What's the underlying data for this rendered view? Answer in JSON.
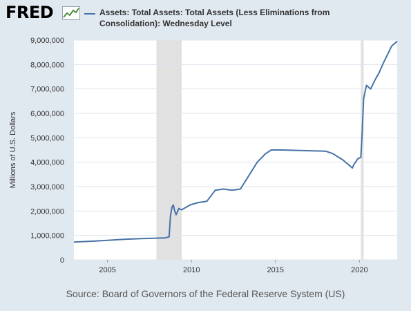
{
  "brand": {
    "logo_text": "FRED"
  },
  "legend": {
    "label": "Assets: Total Assets: Total Assets (Less Eliminations from Consolidation): Wednesday Level"
  },
  "source_note": "Source: Board of Governors of the Federal Reserve System (US)",
  "colors": {
    "line": "#4572a7",
    "background": "#e1e9f0",
    "plot_bg": "#ffffff",
    "recession": "#e1e1e1",
    "grid": "#dde5ec"
  },
  "chart_data": {
    "type": "line",
    "ylabel": "Millions of U.S. Dollars",
    "xlabel": "",
    "xlim": [
      "2003-01-01",
      "2022-04-01"
    ],
    "ylim": [
      0,
      9000000
    ],
    "x_ticks": [
      "2005",
      "2010",
      "2015",
      "2020"
    ],
    "y_ticks": [
      "0",
      "1,000,000",
      "2,000,000",
      "3,000,000",
      "4,000,000",
      "5,000,000",
      "6,000,000",
      "7,000,000",
      "8,000,000",
      "9,000,000"
    ],
    "grid": true,
    "recessions": [
      [
        "2007-12-01",
        "2009-06-01"
      ],
      [
        "2020-02-01",
        "2020-04-01"
      ]
    ],
    "series": [
      {
        "x": [
          "2003-01-01",
          "2004-01-01",
          "2005-01-01",
          "2006-01-01",
          "2007-01-01",
          "2007-12-01",
          "2008-06-01",
          "2008-09-01",
          "2008-10-01",
          "2008-11-01",
          "2008-12-01",
          "2009-01-01",
          "2009-02-01",
          "2009-04-01",
          "2009-06-01",
          "2009-09-01",
          "2009-12-01",
          "2010-06-01",
          "2010-12-01",
          "2011-06-01",
          "2011-12-01",
          "2012-06-01",
          "2012-12-01",
          "2013-06-01",
          "2013-12-01",
          "2014-06-01",
          "2014-10-01",
          "2015-06-01",
          "2016-06-01",
          "2017-06-01",
          "2018-01-01",
          "2018-06-01",
          "2019-01-01",
          "2019-08-01",
          "2019-09-01",
          "2019-12-01",
          "2020-02-01",
          "2020-03-01",
          "2020-04-01",
          "2020-06-01",
          "2020-09-01",
          "2020-12-01",
          "2021-03-01",
          "2021-06-01",
          "2021-09-01",
          "2021-12-01",
          "2022-03-01",
          "2022-04-01"
        ],
        "y": [
          730000,
          760000,
          800000,
          840000,
          870000,
          890000,
          900000,
          940000,
          1800000,
          2150000,
          2250000,
          2000000,
          1850000,
          2100000,
          2050000,
          2150000,
          2250000,
          2350000,
          2400000,
          2850000,
          2900000,
          2850000,
          2900000,
          3450000,
          4000000,
          4350000,
          4500000,
          4500000,
          4480000,
          4460000,
          4450000,
          4350000,
          4100000,
          3760000,
          3900000,
          4150000,
          4200000,
          5200000,
          6600000,
          7150000,
          7000000,
          7350000,
          7650000,
          8050000,
          8400000,
          8750000,
          8900000,
          8950000
        ]
      }
    ]
  }
}
